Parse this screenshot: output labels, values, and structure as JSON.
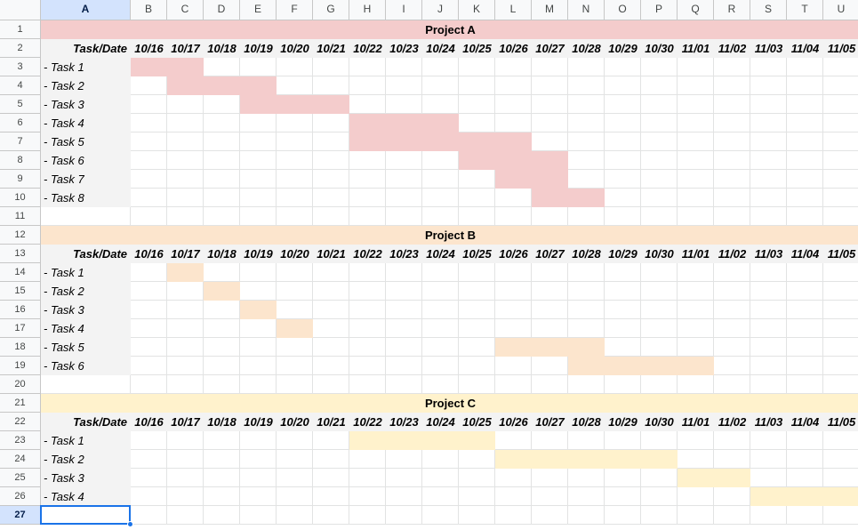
{
  "columns": [
    "A",
    "B",
    "C",
    "D",
    "E",
    "F",
    "G",
    "H",
    "I",
    "J",
    "K",
    "L",
    "M",
    "N",
    "O",
    "P",
    "Q",
    "R",
    "S",
    "T",
    "U"
  ],
  "row_numbers": [
    "1",
    "2",
    "3",
    "4",
    "5",
    "6",
    "7",
    "8",
    "9",
    "10",
    "11",
    "12",
    "13",
    "14",
    "15",
    "16",
    "17",
    "18",
    "19",
    "20",
    "21",
    "22",
    "23",
    "24",
    "25",
    "26",
    "27"
  ],
  "selected_cell": {
    "column": "A",
    "row": "27"
  },
  "task_date_label": "Task/Date",
  "dates": [
    "10/16",
    "10/17",
    "10/18",
    "10/19",
    "10/20",
    "10/21",
    "10/22",
    "10/23",
    "10/24",
    "10/25",
    "10/26",
    "10/27",
    "10/28",
    "10/29",
    "10/30",
    "11/01",
    "11/02",
    "11/03",
    "11/04",
    "11/05"
  ],
  "colors": {
    "project_a": "#f4cccc",
    "project_b": "#fce5cd",
    "project_c": "#fff2cc",
    "label_gray": "#f3f3f3",
    "selection": "#1a73e8"
  },
  "projects": [
    {
      "title": "Project A",
      "color_key": "project_a",
      "title_row": 1,
      "tasks": [
        {
          "label": "- Task 1",
          "start": "10/16",
          "end": "10/17"
        },
        {
          "label": "- Task 2",
          "start": "10/17",
          "end": "10/19"
        },
        {
          "label": "- Task 3",
          "start": "10/19",
          "end": "10/21"
        },
        {
          "label": "- Task 4",
          "start": "10/22",
          "end": "10/24"
        },
        {
          "label": "- Task 5",
          "start": "10/22",
          "end": "10/26"
        },
        {
          "label": "- Task 6",
          "start": "10/25",
          "end": "10/27"
        },
        {
          "label": "- Task 7",
          "start": "10/26",
          "end": "10/27"
        },
        {
          "label": "- Task 8",
          "start": "10/27",
          "end": "10/28"
        }
      ]
    },
    {
      "title": "Project B",
      "color_key": "project_b",
      "title_row": 12,
      "tasks": [
        {
          "label": "- Task 1",
          "start": "10/17",
          "end": "10/17"
        },
        {
          "label": "- Task 2",
          "start": "10/18",
          "end": "10/18"
        },
        {
          "label": "- Task 3",
          "start": "10/19",
          "end": "10/19"
        },
        {
          "label": "- Task 4",
          "start": "10/20",
          "end": "10/20"
        },
        {
          "label": "- Task 5",
          "start": "10/26",
          "end": "10/28"
        },
        {
          "label": "- Task 6",
          "start": "10/28",
          "end": "11/01"
        }
      ]
    },
    {
      "title": "Project C",
      "color_key": "project_c",
      "title_row": 21,
      "tasks": [
        {
          "label": "- Task 1",
          "start": "10/22",
          "end": "10/25"
        },
        {
          "label": "- Task 2",
          "start": "10/26",
          "end": "10/30"
        },
        {
          "label": "- Task 3",
          "start": "11/01",
          "end": "11/02"
        },
        {
          "label": "- Task 4",
          "start": "11/03",
          "end": "11/05"
        }
      ]
    }
  ]
}
